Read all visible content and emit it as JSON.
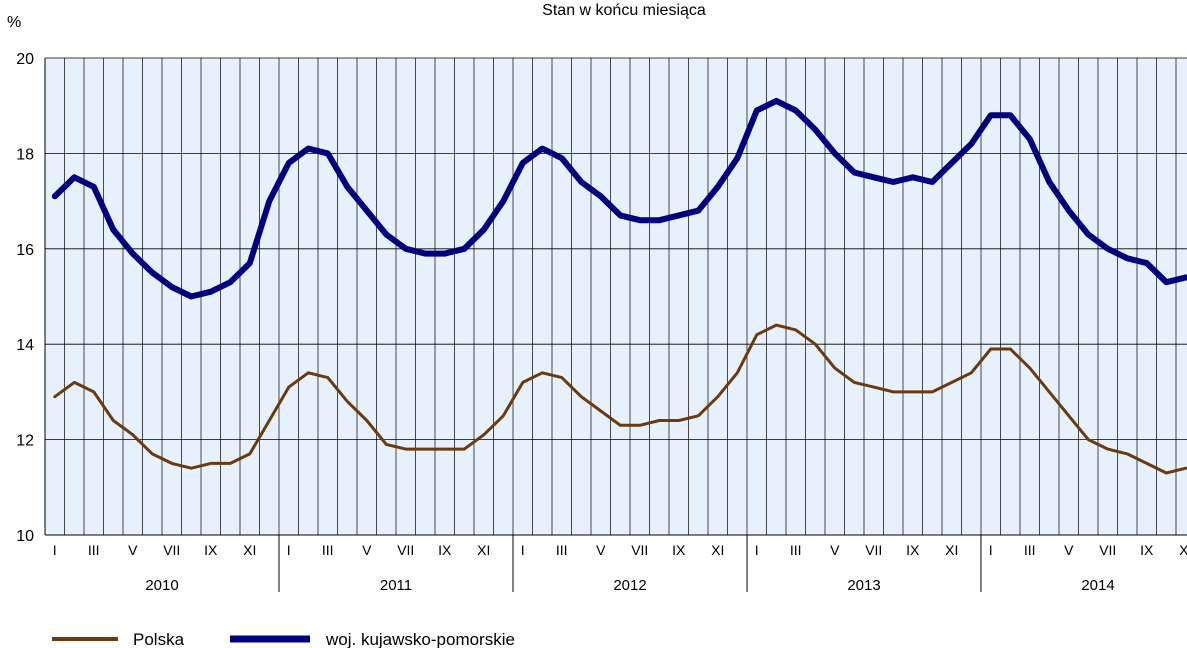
{
  "chart_data": {
    "type": "line",
    "subtitle": "Stan w końcu miesiąca",
    "unit": "%",
    "ylim": [
      10,
      20
    ],
    "yticks": [
      "10",
      "12",
      "14",
      "16",
      "18",
      "20"
    ],
    "grid": true,
    "legend_position": "bottom-left",
    "month_labels": [
      "I",
      "III",
      "V",
      "VII",
      "IX",
      "XI"
    ],
    "years": [
      "2010",
      "2011",
      "2012",
      "2013",
      "2014"
    ],
    "x": [
      "2010-01",
      "2010-02",
      "2010-03",
      "2010-04",
      "2010-05",
      "2010-06",
      "2010-07",
      "2010-08",
      "2010-09",
      "2010-10",
      "2010-11",
      "2010-12",
      "2011-01",
      "2011-02",
      "2011-03",
      "2011-04",
      "2011-05",
      "2011-06",
      "2011-07",
      "2011-08",
      "2011-09",
      "2011-10",
      "2011-11",
      "2011-12",
      "2012-01",
      "2012-02",
      "2012-03",
      "2012-04",
      "2012-05",
      "2012-06",
      "2012-07",
      "2012-08",
      "2012-09",
      "2012-10",
      "2012-11",
      "2012-12",
      "2013-01",
      "2013-02",
      "2013-03",
      "2013-04",
      "2013-05",
      "2013-06",
      "2013-07",
      "2013-08",
      "2013-09",
      "2013-10",
      "2013-11",
      "2013-12",
      "2014-01",
      "2014-02",
      "2014-03",
      "2014-04",
      "2014-05",
      "2014-06",
      "2014-07",
      "2014-08",
      "2014-09",
      "2014-10",
      "2014-11"
    ],
    "series": [
      {
        "name": "Polska",
        "color": "#6b3a10",
        "values": [
          12.9,
          13.2,
          13.0,
          12.4,
          12.1,
          11.7,
          11.5,
          11.4,
          11.5,
          11.5,
          11.7,
          12.4,
          13.1,
          13.4,
          13.3,
          12.8,
          12.4,
          11.9,
          11.8,
          11.8,
          11.8,
          11.8,
          12.1,
          12.5,
          13.2,
          13.4,
          13.3,
          12.9,
          12.6,
          12.3,
          12.3,
          12.4,
          12.4,
          12.5,
          12.9,
          13.4,
          14.2,
          14.4,
          14.3,
          14.0,
          13.5,
          13.2,
          13.1,
          13.0,
          13.0,
          13.0,
          13.2,
          13.4,
          13.9,
          13.9,
          13.5,
          13.0,
          12.5,
          12.0,
          11.8,
          11.7,
          11.5,
          11.3,
          11.4
        ]
      },
      {
        "name": "woj. kujawsko-pomorskie",
        "color": "#00007f",
        "values": [
          17.1,
          17.5,
          17.3,
          16.4,
          15.9,
          15.5,
          15.2,
          15.0,
          15.1,
          15.3,
          15.7,
          17.0,
          17.8,
          18.1,
          18.0,
          17.3,
          16.8,
          16.3,
          16.0,
          15.9,
          15.9,
          16.0,
          16.4,
          17.0,
          17.8,
          18.1,
          17.9,
          17.4,
          17.1,
          16.7,
          16.6,
          16.6,
          16.7,
          16.8,
          17.3,
          17.9,
          18.9,
          19.1,
          18.9,
          18.5,
          18.0,
          17.6,
          17.5,
          17.4,
          17.5,
          17.4,
          17.8,
          18.2,
          18.8,
          18.8,
          18.3,
          17.4,
          16.8,
          16.3,
          16.0,
          15.8,
          15.7,
          15.3,
          15.4
        ]
      }
    ]
  }
}
